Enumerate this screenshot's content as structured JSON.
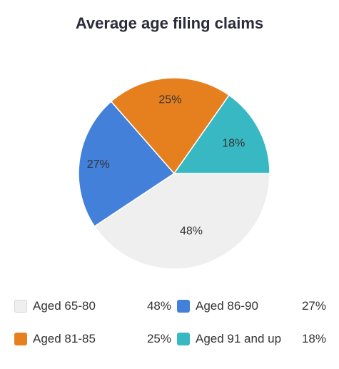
{
  "chart_data": {
    "type": "pie",
    "title": "Average age filing claims",
    "categories": [
      "Aged 65-80",
      "Aged 86-90",
      "Aged 81-85",
      "Aged 91 and up"
    ],
    "values": [
      48,
      27,
      25,
      18
    ],
    "value_labels": [
      "48%",
      "27%",
      "25%",
      "18%"
    ],
    "colors": [
      "#efefef",
      "#4280d9",
      "#e6801f",
      "#38b8c2"
    ],
    "legend_placement": "bottom"
  },
  "legend": [
    {
      "label": "Aged 65-80",
      "value": "48%",
      "color": "#efefef"
    },
    {
      "label": "Aged 86-90",
      "value": "27%",
      "color": "#4280d9"
    },
    {
      "label": "Aged 81-85",
      "value": "25%",
      "color": "#e6801f"
    },
    {
      "label": "Aged 91 and up",
      "value": "18%",
      "color": "#38b8c2"
    }
  ]
}
